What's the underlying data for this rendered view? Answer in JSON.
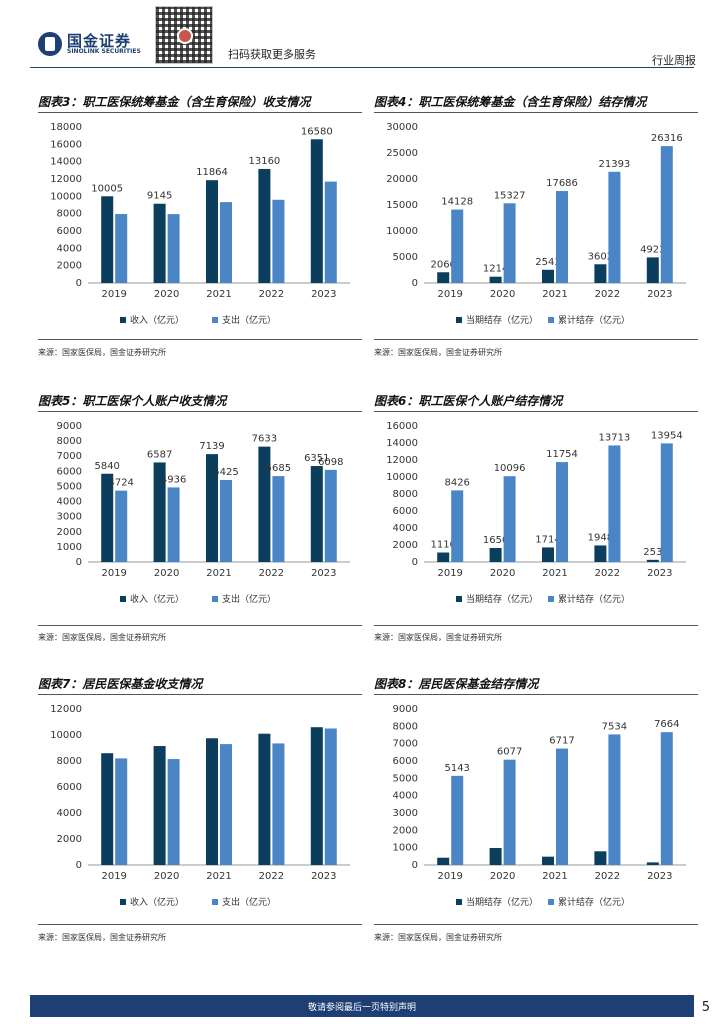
{
  "header": {
    "logo_cn": "国金证券",
    "logo_en": "SINOLINK SECURITIES",
    "scan_text": "扫码获取更多服务",
    "report_type": "行业周报"
  },
  "source_text": "来源：国家医保局，国金证券研究所",
  "footer": {
    "text": "敬请参阅最后一页特别声明",
    "page_number": "5"
  },
  "colors": {
    "dark": "#0b3d5c",
    "light": "#4a86c5",
    "brand": "#1d3f73"
  },
  "chart_data": [
    {
      "id": "fig3",
      "title": "图表3：职工医保统筹基金（含生育保险）收支情况",
      "type": "bar",
      "categories": [
        "2019",
        "2020",
        "2021",
        "2022",
        "2023"
      ],
      "ylim": [
        0,
        18000
      ],
      "yticks": [
        "0",
        "2000",
        "4000",
        "6000",
        "8000",
        "10000",
        "12000",
        "14000",
        "16000",
        "18000"
      ],
      "series": [
        {
          "name": "收入（亿元）",
          "values": [
            10005,
            9145,
            11864,
            13160,
            16580
          ],
          "labels": [
            "10005",
            "9145",
            "11864",
            "13160",
            "16580"
          ]
        },
        {
          "name": "支出（亿元）",
          "values": [
            7960,
            7950,
            9330,
            9600,
            11700
          ],
          "labels": [
            "",
            "",
            "",
            "",
            ""
          ]
        }
      ]
    },
    {
      "id": "fig4",
      "title": "图表4：职工医保统筹基金（含生育保险）结存情况",
      "type": "bar",
      "categories": [
        "2019",
        "2020",
        "2021",
        "2022",
        "2023"
      ],
      "ylim": [
        0,
        30000
      ],
      "yticks": [
        "0",
        "5000",
        "10000",
        "15000",
        "20000",
        "25000",
        "30000"
      ],
      "series": [
        {
          "name": "当期结存（亿元）",
          "values": [
            2066,
            1214,
            2543,
            3602,
            4923
          ],
          "labels": [
            "2066",
            "1214",
            "2543",
            "3602",
            "4923"
          ]
        },
        {
          "name": "累计结存（亿元）",
          "values": [
            14128,
            15327,
            17686,
            21393,
            26316
          ],
          "labels": [
            "14128",
            "15327",
            "17686",
            "21393",
            "26316"
          ]
        }
      ]
    },
    {
      "id": "fig5",
      "title": "图表5：职工医保个人账户收支情况",
      "type": "bar",
      "categories": [
        "2019",
        "2020",
        "2021",
        "2022",
        "2023"
      ],
      "ylim": [
        0,
        9000
      ],
      "yticks": [
        "0",
        "1000",
        "2000",
        "3000",
        "4000",
        "5000",
        "6000",
        "7000",
        "8000",
        "9000"
      ],
      "series": [
        {
          "name": "收入（亿元）",
          "values": [
            5840,
            6587,
            7139,
            7633,
            6351
          ],
          "labels": [
            "5840",
            "6587",
            "7139",
            "7633",
            "6351"
          ]
        },
        {
          "name": "支出（亿元）",
          "values": [
            4724,
            4936,
            5425,
            5685,
            6098
          ],
          "labels": [
            "4724",
            "4936",
            "5425",
            "5685",
            "6098"
          ]
        }
      ]
    },
    {
      "id": "fig6",
      "title": "图表6：职工医保个人账户结存情况",
      "type": "bar",
      "categories": [
        "2019",
        "2020",
        "2021",
        "2022",
        "2023"
      ],
      "ylim": [
        0,
        16000
      ],
      "yticks": [
        "0",
        "2000",
        "4000",
        "6000",
        "8000",
        "10000",
        "12000",
        "14000",
        "16000"
      ],
      "series": [
        {
          "name": "当期结存（亿元）",
          "values": [
            1116,
            1650,
            1714,
            1948,
            253
          ],
          "labels": [
            "1116",
            "1650",
            "1714",
            "1948",
            "253"
          ]
        },
        {
          "name": "累计结存（亿元）",
          "values": [
            8426,
            10096,
            11754,
            13713,
            13954
          ],
          "labels": [
            "8426",
            "10096",
            "11754",
            "13713",
            "13954"
          ]
        }
      ]
    },
    {
      "id": "fig7",
      "title": "图表7：居民医保基金收支情况",
      "type": "bar",
      "categories": [
        "2019",
        "2020",
        "2021",
        "2022",
        "2023"
      ],
      "ylim": [
        0,
        12000
      ],
      "yticks": [
        "0",
        "2000",
        "4000",
        "6000",
        "8000",
        "10000",
        "12000"
      ],
      "series": [
        {
          "name": "收入（亿元）",
          "values": [
            8600,
            9150,
            9750,
            10100,
            10600
          ],
          "labels": [
            "",
            "",
            "",
            "",
            ""
          ]
        },
        {
          "name": "支出（亿元）",
          "values": [
            8200,
            8150,
            9300,
            9350,
            10500
          ],
          "labels": [
            "",
            "",
            "",
            "",
            ""
          ]
        }
      ]
    },
    {
      "id": "fig8",
      "title": "图表8：居民医保基金结存情况",
      "type": "bar",
      "categories": [
        "2019",
        "2020",
        "2021",
        "2022",
        "2023"
      ],
      "ylim": [
        0,
        9000
      ],
      "yticks": [
        "0",
        "1000",
        "2000",
        "3000",
        "4000",
        "5000",
        "6000",
        "7000",
        "8000",
        "9000"
      ],
      "series": [
        {
          "name": "当期结存（亿元）",
          "values": [
            420,
            980,
            480,
            790,
            150
          ],
          "labels": [
            "",
            "",
            "",
            "",
            ""
          ]
        },
        {
          "name": "累计结存（亿元）",
          "values": [
            5143,
            6077,
            6717,
            7534,
            7664
          ],
          "labels": [
            "5143",
            "6077",
            "6717",
            "7534",
            "7664"
          ]
        }
      ]
    }
  ]
}
